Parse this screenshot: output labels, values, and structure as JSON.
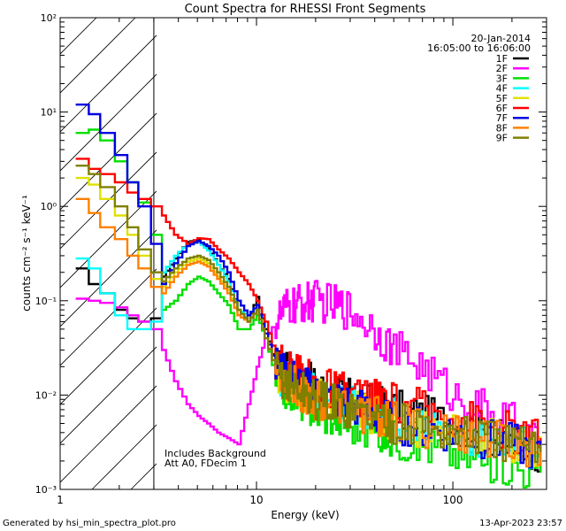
{
  "chart_data": {
    "type": "line",
    "title": "Count Spectra for RHESSI Front Segments",
    "xlabel": "Energy (keV)",
    "ylabel": "counts cm⁻² s⁻¹ keV⁻¹",
    "xscale": "log",
    "yscale": "log",
    "xlim": [
      1,
      300
    ],
    "ylim": [
      0.001,
      100
    ],
    "x_ticks": [
      "1",
      "10",
      "100"
    ],
    "y_ticks": [
      "10⁻³",
      "10⁻²",
      "10⁻¹",
      "10⁰",
      "10¹",
      "10²"
    ],
    "date": "20-Jan-2014",
    "time_range": "16:05:00 to 16:06:00",
    "annotation": [
      "Includes Background",
      "Att A0, FDecim 1"
    ],
    "hatched_region_keV": [
      1,
      3
    ],
    "series": [
      {
        "name": "1F",
        "color": "#000000",
        "x": [
          1.2,
          1.4,
          1.6,
          1.9,
          2.2,
          2.5,
          2.9,
          3.3,
          3.8,
          4.4,
          5.0,
          5.6,
          6.3,
          7.1,
          8.0,
          9.0,
          10.0,
          11.0,
          12.5,
          14.0,
          16.0,
          18.0,
          20.0,
          25.0,
          30.0,
          40.0,
          50.0,
          70.0,
          100.0,
          140.0,
          200.0,
          280.0
        ],
        "values": [
          0.22,
          0.15,
          0.12,
          0.08,
          0.065,
          0.06,
          0.065,
          0.18,
          0.28,
          0.42,
          0.44,
          0.36,
          0.24,
          0.17,
          0.08,
          0.06,
          0.11,
          0.05,
          0.02,
          0.018,
          0.016,
          0.014,
          0.012,
          0.01,
          0.009,
          0.008,
          0.007,
          0.006,
          0.005,
          0.004,
          0.003,
          0.0025
        ]
      },
      {
        "name": "2F",
        "color": "#ff00ff",
        "x": [
          1.2,
          1.4,
          1.6,
          1.9,
          2.2,
          2.5,
          2.9,
          3.3,
          3.8,
          4.4,
          5.0,
          5.6,
          6.3,
          7.1,
          8.0,
          9.0,
          10.0,
          11.0,
          12.5,
          14.0,
          16.0,
          18.0,
          20.0,
          25.0,
          30.0,
          40.0,
          50.0,
          70.0,
          100.0,
          140.0,
          200.0,
          280.0
        ],
        "values": [
          0.105,
          0.1,
          0.095,
          0.085,
          0.07,
          0.06,
          0.05,
          0.03,
          0.014,
          0.008,
          0.006,
          0.005,
          0.004,
          0.0035,
          0.003,
          0.008,
          0.02,
          0.04,
          0.06,
          0.08,
          0.09,
          0.095,
          0.1,
          0.09,
          0.08,
          0.05,
          0.03,
          0.02,
          0.01,
          0.007,
          0.005,
          0.003
        ]
      },
      {
        "name": "3F",
        "color": "#00e000",
        "x": [
          1.2,
          1.4,
          1.6,
          1.9,
          2.2,
          2.5,
          2.9,
          3.3,
          3.8,
          4.4,
          5.0,
          5.6,
          6.3,
          7.1,
          8.0,
          9.0,
          10.0,
          11.0,
          12.5,
          14.0,
          16.0,
          18.0,
          20.0,
          25.0,
          30.0,
          40.0,
          50.0,
          70.0,
          100.0,
          140.0,
          200.0,
          280.0
        ],
        "values": [
          6.0,
          6.5,
          5.0,
          3.0,
          1.8,
          1.1,
          0.5,
          0.08,
          0.1,
          0.15,
          0.18,
          0.16,
          0.12,
          0.09,
          0.05,
          0.05,
          0.07,
          0.04,
          0.015,
          0.012,
          0.01,
          0.008,
          0.007,
          0.006,
          0.005,
          0.004,
          0.0035,
          0.003,
          0.0025,
          0.002,
          0.0018,
          0.0015
        ]
      },
      {
        "name": "4F",
        "color": "#00ffff",
        "x": [
          1.2,
          1.4,
          1.6,
          1.9,
          2.2,
          2.5,
          2.9,
          3.3,
          3.8,
          4.4,
          5.0,
          5.6,
          6.3,
          7.1,
          8.0,
          9.0,
          10.0,
          11.0,
          12.5,
          14.0,
          16.0,
          18.0,
          20.0,
          25.0,
          30.0,
          40.0,
          50.0,
          70.0,
          100.0,
          140.0,
          200.0,
          280.0
        ],
        "values": [
          0.28,
          0.22,
          0.12,
          0.07,
          0.05,
          0.05,
          0.06,
          0.2,
          0.3,
          0.4,
          0.42,
          0.34,
          0.24,
          0.16,
          0.08,
          0.07,
          0.09,
          0.04,
          0.018,
          0.015,
          0.013,
          0.011,
          0.01,
          0.009,
          0.008,
          0.007,
          0.006,
          0.005,
          0.004,
          0.0035,
          0.003,
          0.0025
        ]
      },
      {
        "name": "5F",
        "color": "#e0e000",
        "x": [
          1.2,
          1.4,
          1.6,
          1.9,
          2.2,
          2.5,
          2.9,
          3.3,
          3.8,
          4.4,
          5.0,
          5.6,
          6.3,
          7.1,
          8.0,
          9.0,
          10.0,
          11.0,
          12.5,
          14.0,
          16.0,
          18.0,
          20.0,
          25.0,
          30.0,
          40.0,
          50.0,
          70.0,
          100.0,
          140.0,
          200.0,
          280.0
        ],
        "values": [
          2.0,
          1.7,
          1.2,
          0.8,
          0.5,
          0.3,
          0.17,
          0.14,
          0.2,
          0.26,
          0.28,
          0.25,
          0.18,
          0.13,
          0.07,
          0.06,
          0.08,
          0.04,
          0.018,
          0.014,
          0.012,
          0.01,
          0.009,
          0.008,
          0.007,
          0.006,
          0.005,
          0.0045,
          0.004,
          0.0035,
          0.003,
          0.0025
        ]
      },
      {
        "name": "6F",
        "color": "#ff0000",
        "x": [
          1.2,
          1.4,
          1.6,
          1.9,
          2.2,
          2.5,
          2.9,
          3.3,
          3.8,
          4.4,
          5.0,
          5.6,
          6.3,
          7.1,
          8.0,
          9.0,
          10.0,
          11.0,
          12.5,
          14.0,
          16.0,
          18.0,
          20.0,
          25.0,
          30.0,
          40.0,
          50.0,
          70.0,
          100.0,
          140.0,
          200.0,
          280.0
        ],
        "values": [
          3.2,
          2.5,
          2.2,
          1.8,
          1.4,
          1.2,
          1.0,
          0.8,
          0.5,
          0.4,
          0.46,
          0.45,
          0.35,
          0.28,
          0.2,
          0.15,
          0.1,
          0.06,
          0.025,
          0.02,
          0.017,
          0.015,
          0.013,
          0.011,
          0.01,
          0.009,
          0.008,
          0.007,
          0.006,
          0.005,
          0.004,
          0.0035
        ]
      },
      {
        "name": "7F",
        "color": "#0000e0",
        "x": [
          1.2,
          1.4,
          1.6,
          1.9,
          2.2,
          2.5,
          2.9,
          3.3,
          3.8,
          4.4,
          5.0,
          5.6,
          6.3,
          7.1,
          8.0,
          9.0,
          10.0,
          11.0,
          12.5,
          14.0,
          16.0,
          18.0,
          20.0,
          25.0,
          30.0,
          40.0,
          50.0,
          70.0,
          100.0,
          140.0,
          200.0,
          280.0
        ],
        "values": [
          12.0,
          9.5,
          6.0,
          3.5,
          1.8,
          1.0,
          0.4,
          0.15,
          0.25,
          0.38,
          0.43,
          0.38,
          0.3,
          0.2,
          0.1,
          0.07,
          0.09,
          0.045,
          0.02,
          0.016,
          0.014,
          0.012,
          0.01,
          0.009,
          0.008,
          0.006,
          0.005,
          0.0045,
          0.004,
          0.0035,
          0.003,
          0.0025
        ]
      },
      {
        "name": "8F",
        "color": "#ff8000",
        "x": [
          1.2,
          1.4,
          1.6,
          1.9,
          2.2,
          2.5,
          2.9,
          3.3,
          3.8,
          4.4,
          5.0,
          5.6,
          6.3,
          7.1,
          8.0,
          9.0,
          10.0,
          11.0,
          12.5,
          14.0,
          16.0,
          18.0,
          20.0,
          25.0,
          30.0,
          40.0,
          50.0,
          70.0,
          100.0,
          140.0,
          200.0,
          280.0
        ],
        "values": [
          1.2,
          0.85,
          0.6,
          0.45,
          0.3,
          0.22,
          0.14,
          0.12,
          0.18,
          0.24,
          0.26,
          0.23,
          0.17,
          0.12,
          0.07,
          0.06,
          0.08,
          0.04,
          0.018,
          0.014,
          0.012,
          0.01,
          0.009,
          0.008,
          0.007,
          0.006,
          0.005,
          0.0045,
          0.004,
          0.0035,
          0.003,
          0.0025
        ]
      },
      {
        "name": "9F",
        "color": "#808000",
        "x": [
          1.2,
          1.4,
          1.6,
          1.9,
          2.2,
          2.5,
          2.9,
          3.3,
          3.8,
          4.4,
          5.0,
          5.6,
          6.3,
          7.1,
          8.0,
          9.0,
          10.0,
          11.0,
          12.5,
          14.0,
          16.0,
          18.0,
          20.0,
          25.0,
          30.0,
          40.0,
          50.0,
          70.0,
          100.0,
          140.0,
          200.0,
          280.0
        ],
        "values": [
          2.7,
          2.2,
          1.6,
          1.0,
          0.6,
          0.35,
          0.2,
          0.16,
          0.22,
          0.28,
          0.3,
          0.27,
          0.2,
          0.14,
          0.08,
          0.06,
          0.08,
          0.04,
          0.018,
          0.014,
          0.012,
          0.01,
          0.009,
          0.008,
          0.007,
          0.006,
          0.005,
          0.0045,
          0.004,
          0.0035,
          0.003,
          0.0025
        ]
      }
    ]
  },
  "footer": {
    "left": "Generated by hsi_min_spectra_plot.pro",
    "right": "13-Apr-2023 23:57"
  }
}
